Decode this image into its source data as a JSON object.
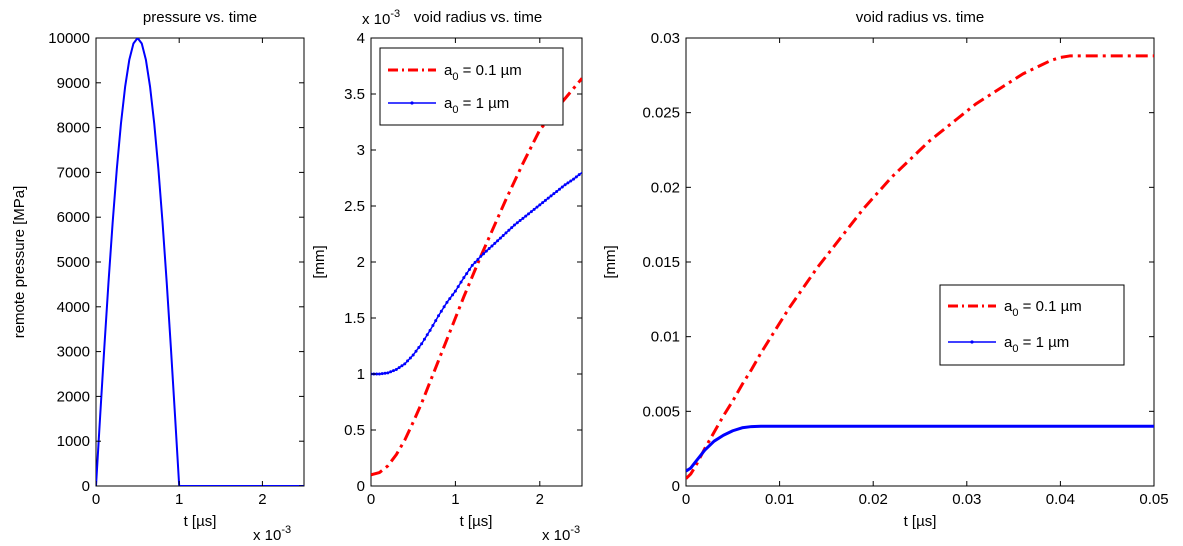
{
  "chart_data": [
    {
      "type": "line",
      "title": "pressure vs. time",
      "xlabel": "t [µs]",
      "ylabel": "remote pressure [MPa]",
      "xlim": [
        0,
        0.0025
      ],
      "ylim": [
        0,
        10000
      ],
      "x_exponent_label": "x 10",
      "x_exponent_power": "-3",
      "x_ticks": [
        0,
        0.001,
        0.002
      ],
      "x_tick_labels": [
        "0",
        "1",
        "2"
      ],
      "y_ticks": [
        0,
        1000,
        2000,
        3000,
        4000,
        5000,
        6000,
        7000,
        8000,
        9000,
        10000
      ],
      "y_tick_labels": [
        "0",
        "1000",
        "2000",
        "3000",
        "4000",
        "5000",
        "6000",
        "7000",
        "8000",
        "9000",
        "10000"
      ],
      "series": [
        {
          "color": "#0000ff",
          "style": "solid",
          "x": [
            0,
            5e-05,
            0.0001,
            0.00015,
            0.0002,
            0.00025,
            0.0003,
            0.00035,
            0.0004,
            0.00045,
            0.0005,
            0.00055,
            0.0006,
            0.00065,
            0.0007,
            0.00075,
            0.0008,
            0.00085,
            0.0009,
            0.00095,
            0.001,
            0.0015,
            0.002,
            0.0025
          ],
          "y": [
            0,
            1564,
            3090,
            4540,
            5878,
            7071,
            8090,
            8910,
            9511,
            9877,
            10000,
            9877,
            9511,
            8910,
            8090,
            7071,
            5878,
            4540,
            3090,
            1564,
            0,
            0,
            0,
            0
          ]
        }
      ]
    },
    {
      "type": "line",
      "title": "void radius vs. time",
      "xlabel": "t [µs]",
      "ylabel": "[mm]",
      "xlim": [
        0,
        0.0025
      ],
      "ylim": [
        0,
        0.004
      ],
      "x_exponent_label": "x 10",
      "x_exponent_power": "-3",
      "y_exponent_label": "x 10",
      "y_exponent_power": "-3",
      "x_ticks": [
        0,
        0.001,
        0.002
      ],
      "x_tick_labels": [
        "0",
        "1",
        "2"
      ],
      "y_ticks": [
        0,
        0.0005,
        0.001,
        0.0015,
        0.002,
        0.0025,
        0.003,
        0.0035,
        0.004
      ],
      "y_tick_labels": [
        "0",
        "0.5",
        "1",
        "1.5",
        "2",
        "2.5",
        "3",
        "3.5",
        "4"
      ],
      "legend": {
        "placement": "top-left",
        "entries": [
          {
            "prefix": "a",
            "sub": "0",
            "suffix": " = 0.1 µm"
          },
          {
            "prefix": "a",
            "sub": "0",
            "suffix": " = 1 µm"
          }
        ]
      },
      "series": [
        {
          "color": "#ff0000",
          "style": "dashdot",
          "x": [
            0,
            0.0001,
            0.0002,
            0.0003,
            0.0004,
            0.0005,
            0.0006,
            0.0007,
            0.0008,
            0.0009,
            0.001,
            0.0011,
            0.0012,
            0.0013,
            0.0014,
            0.0015,
            0.0016,
            0.0017,
            0.0018,
            0.0019,
            0.002,
            0.0021,
            0.0022,
            0.0023,
            0.0024,
            0.0025
          ],
          "y": [
            0.0001,
            0.00012,
            0.00018,
            0.00028,
            0.00041,
            0.00057,
            0.00074,
            0.00093,
            0.00112,
            0.00131,
            0.0015,
            0.00169,
            0.00187,
            0.00205,
            0.00222,
            0.00239,
            0.00256,
            0.00272,
            0.00288,
            0.00303,
            0.00318,
            0.00327,
            0.00337,
            0.00346,
            0.00355,
            0.00364
          ]
        },
        {
          "color": "#0000ff",
          "style": "solid-dots",
          "x": [
            0,
            0.0001,
            0.0002,
            0.0003,
            0.0004,
            0.0005,
            0.0006,
            0.0007,
            0.0008,
            0.0009,
            0.001,
            0.0011,
            0.0012,
            0.0013,
            0.0014,
            0.0015,
            0.0016,
            0.0017,
            0.0018,
            0.0019,
            0.002,
            0.0021,
            0.0022,
            0.0023,
            0.0024,
            0.0025
          ],
          "y": [
            0.001,
            0.001,
            0.00101,
            0.00104,
            0.00109,
            0.00117,
            0.00127,
            0.00139,
            0.00152,
            0.00164,
            0.00174,
            0.00186,
            0.00197,
            0.00205,
            0.00212,
            0.00219,
            0.00226,
            0.00233,
            0.00239,
            0.00245,
            0.00251,
            0.00257,
            0.00263,
            0.00269,
            0.00274,
            0.0028
          ]
        }
      ]
    },
    {
      "type": "line",
      "title": "void radius vs. time",
      "xlabel": "t [µs]",
      "ylabel": "[mm]",
      "xlim": [
        0,
        0.05
      ],
      "ylim": [
        0,
        0.03
      ],
      "x_ticks": [
        0,
        0.01,
        0.02,
        0.03,
        0.04,
        0.05
      ],
      "x_tick_labels": [
        "0",
        "0.01",
        "0.02",
        "0.03",
        "0.04",
        "0.05"
      ],
      "y_ticks": [
        0,
        0.005,
        0.01,
        0.015,
        0.02,
        0.025,
        0.03
      ],
      "y_tick_labels": [
        "0",
        "0.005",
        "0.01",
        "0.015",
        "0.02",
        "0.025",
        "0.03"
      ],
      "legend": {
        "placement": "right",
        "entries": [
          {
            "prefix": "a",
            "sub": "0",
            "suffix": " = 0.1 µm"
          },
          {
            "prefix": "a",
            "sub": "0",
            "suffix": " = 1 µm"
          }
        ]
      },
      "series": [
        {
          "color": "#ff0000",
          "style": "dashdot",
          "x": [
            0,
            0.0005,
            0.001,
            0.002,
            0.003,
            0.004,
            0.005,
            0.006,
            0.007,
            0.008,
            0.009,
            0.01,
            0.011,
            0.012,
            0.013,
            0.014,
            0.015,
            0.016,
            0.017,
            0.018,
            0.019,
            0.02,
            0.021,
            0.022,
            0.023,
            0.024,
            0.025,
            0.026,
            0.027,
            0.028,
            0.029,
            0.03,
            0.031,
            0.032,
            0.033,
            0.034,
            0.035,
            0.036,
            0.037,
            0.038,
            0.039,
            0.04,
            0.041,
            0.042,
            0.045,
            0.048,
            0.05
          ],
          "y": [
            0.0005,
            0.0008,
            0.0013,
            0.0025,
            0.0036,
            0.0047,
            0.0057,
            0.0068,
            0.0078,
            0.0089,
            0.0099,
            0.0109,
            0.0119,
            0.0128,
            0.0137,
            0.0146,
            0.0154,
            0.0162,
            0.017,
            0.0178,
            0.0186,
            0.0193,
            0.02,
            0.0207,
            0.0213,
            0.0219,
            0.0225,
            0.0231,
            0.0236,
            0.0241,
            0.0246,
            0.0251,
            0.0256,
            0.026,
            0.0264,
            0.0268,
            0.0272,
            0.0276,
            0.0279,
            0.0282,
            0.0285,
            0.0287,
            0.0288,
            0.0288,
            0.0288,
            0.0288,
            0.0288
          ]
        },
        {
          "color": "#0000ff",
          "style": "solid",
          "x": [
            0,
            0.0005,
            0.001,
            0.0015,
            0.002,
            0.003,
            0.004,
            0.005,
            0.006,
            0.007,
            0.008,
            0.009,
            0.01,
            0.015,
            0.02,
            0.03,
            0.04,
            0.05
          ],
          "y": [
            0.001,
            0.0012,
            0.0016,
            0.002,
            0.0024,
            0.003,
            0.0034,
            0.0037,
            0.0039,
            0.00398,
            0.004,
            0.004,
            0.004,
            0.004,
            0.004,
            0.004,
            0.004,
            0.004
          ]
        }
      ]
    }
  ]
}
